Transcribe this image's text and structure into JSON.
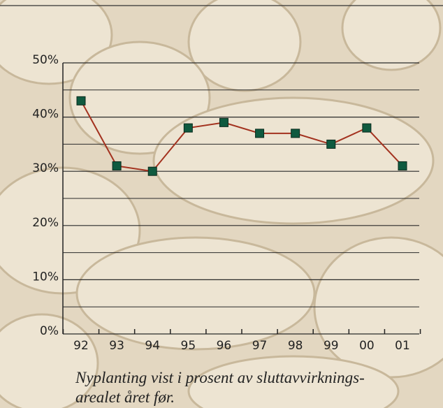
{
  "chart_data": {
    "type": "line",
    "categories": [
      "92",
      "93",
      "94",
      "95",
      "96",
      "97",
      "98",
      "99",
      "00",
      "01"
    ],
    "series": [
      {
        "name": null,
        "color": "#a3321f",
        "marker_color": "#0f5a3f",
        "values": [
          43,
          31,
          30,
          38,
          39,
          37,
          37,
          35,
          38,
          31
        ]
      }
    ],
    "ylim": [
      0,
      50
    ],
    "yticks": [
      {
        "value": 0,
        "label": "0%"
      },
      {
        "value": 10,
        "label": "10%"
      },
      {
        "value": 20,
        "label": "20%"
      },
      {
        "value": 30,
        "label": "30%"
      },
      {
        "value": 40,
        "label": "40%"
      },
      {
        "value": 50,
        "label": "50%"
      }
    ],
    "minor_yticks": [
      5,
      15,
      25,
      35,
      45
    ],
    "grid": true,
    "caption": [
      "Nyplanting vist i prosent av sluttavvirknings-",
      "arealet året før."
    ]
  }
}
